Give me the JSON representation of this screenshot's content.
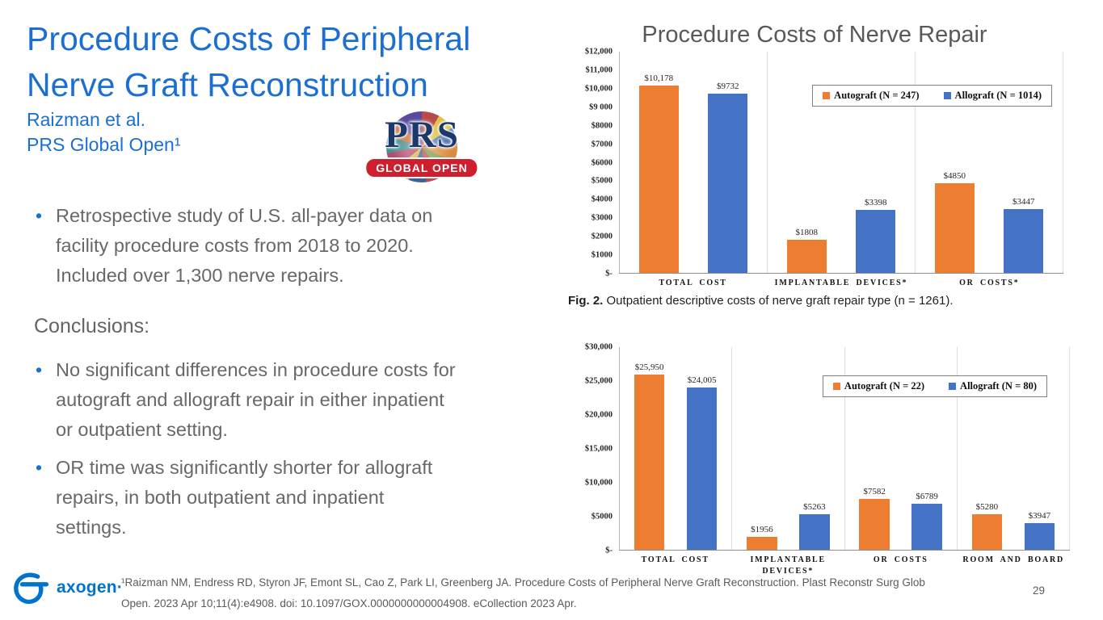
{
  "slide": {
    "title_lines": [
      "Procedure Costs of Peripheral",
      "Nerve Graft Reconstruction"
    ],
    "authors": "Raizman et al.",
    "journal": "PRS Global Open¹",
    "study_bullets": [
      [
        "Retrospective study of U.S. all-payer data on",
        "facility procedure costs from 2018 to 2020.",
        "Included over 1,300 nerve repairs."
      ]
    ],
    "conclusions_heading": "Conclusions:",
    "conclusion_bullets": [
      [
        "No significant differences in procedure costs for",
        "autograft and allograft repair in either inpatient",
        "or outpatient setting."
      ],
      [
        "OR time was significantly shorter for allograft",
        "repairs, in both outpatient and inpatient",
        "settings."
      ]
    ],
    "citation_lines": [
      "¹Raizman NM, Endress RD, Styron JF, Emont SL, Cao Z, Park LI, Greenberg JA. Procedure Costs of Peripheral Nerve Graft Reconstruction. Plast Reconstr Surg Glob",
      "Open. 2023 Apr 10;11(4):e4908. doi: 10.1097/GOX.0000000000004908. eCollection 2023 Apr."
    ],
    "page_number": "29",
    "colors": {
      "accent_blue": "#1B6FD2",
      "body_gray": "#686868",
      "autograft_orange": "#ED7D31",
      "allograft_blue": "#4472C4"
    }
  },
  "prs_logo": {
    "acronym": "PRS",
    "banner": "GLOBAL OPEN"
  },
  "axogen_logo": {
    "wordmark": "axogen·"
  },
  "chart_data": [
    {
      "type": "bar",
      "title": "Procedure Costs of Nerve Repair",
      "categories": [
        "TOTAL COST",
        "IMPLANTABLE DEVICES*",
        "OR COSTS*"
      ],
      "series": [
        {
          "name": "Autograft (N = 247)",
          "color": "#ED7D31",
          "values": [
            10178,
            1808,
            4850
          ],
          "labels": [
            "$10,178",
            "$1808",
            "$4850"
          ]
        },
        {
          "name": "Allograft (N = 1014)",
          "color": "#4472C4",
          "values": [
            9732,
            3398,
            3447
          ],
          "labels": [
            "$9732",
            "$3398",
            "$3447"
          ]
        }
      ],
      "ylim": [
        0,
        12000
      ],
      "yticks": [
        [
          "$12,000",
          12000
        ],
        [
          "$11,000",
          11000
        ],
        [
          "$10,000",
          10000
        ],
        [
          "$9 000",
          9000
        ],
        [
          "$8000",
          8000
        ],
        [
          "$7000",
          7000
        ],
        [
          "$6000",
          6000
        ],
        [
          "$5000",
          5000
        ],
        [
          "$4000",
          4000
        ],
        [
          "$3000",
          3000
        ],
        [
          "$2000",
          2000
        ],
        [
          "$1000",
          1000
        ],
        [
          "$-",
          0
        ]
      ],
      "legend_position": "top-right",
      "caption_prefix": "Fig. 2.",
      "caption_text": " Outpatient descriptive costs of nerve graft repair type (n = 1261)."
    },
    {
      "type": "bar",
      "title": "",
      "categories": [
        "TOTAL COST",
        "IMPLANTABLE DEVICES*",
        "OR COSTS",
        "ROOM AND BOARD"
      ],
      "series": [
        {
          "name": "Autograft (N = 22)",
          "color": "#ED7D31",
          "values": [
            25950,
            1956,
            7582,
            5280
          ],
          "labels": [
            "$25,950",
            "$1956",
            "$7582",
            "$5280"
          ]
        },
        {
          "name": "Allograft (N = 80)",
          "color": "#4472C4",
          "values": [
            24005,
            5263,
            6789,
            3947
          ],
          "labels": [
            "$24,005",
            "$5263",
            "$6789",
            "$3947"
          ]
        }
      ],
      "ylim": [
        0,
        30000
      ],
      "yticks": [
        [
          "$30,000",
          30000
        ],
        [
          "$25,000",
          25000
        ],
        [
          "$20,000",
          20000
        ],
        [
          "$15,000",
          15000
        ],
        [
          "$10,000",
          10000
        ],
        [
          "$5000",
          5000
        ],
        [
          "$-",
          0
        ]
      ],
      "legend_position": "top-right"
    }
  ]
}
